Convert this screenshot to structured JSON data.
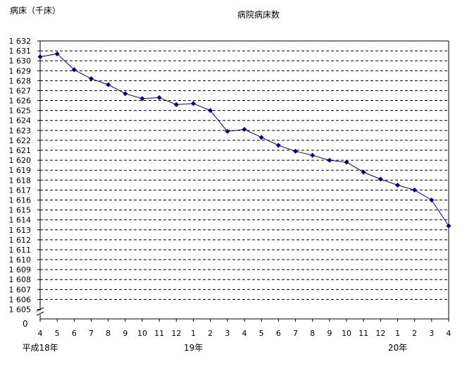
{
  "chart_data": {
    "type": "line",
    "title": "病院病床数",
    "ylabel": "病床（千床）",
    "xlabel": "",
    "y_break_label": "0",
    "ylim": [
      1605,
      1632
    ],
    "y_ticks": [
      "1 605",
      "1 606",
      "1 607",
      "1 608",
      "1 609",
      "1 610",
      "1 611",
      "1 612",
      "1 613",
      "1 614",
      "1 615",
      "1 616",
      "1 617",
      "1 618",
      "1 619",
      "1 620",
      "1 621",
      "1 622",
      "1 623",
      "1 624",
      "1 625",
      "1 626",
      "1 627",
      "1 628",
      "1 629",
      "1 630",
      "1 631",
      "1 632"
    ],
    "categories": [
      "4",
      "5",
      "6",
      "7",
      "8",
      "9",
      "10",
      "11",
      "12",
      "1",
      "2",
      "3",
      "4",
      "5",
      "6",
      "7",
      "8",
      "9",
      "10",
      "11",
      "12",
      "1",
      "2",
      "3",
      "4"
    ],
    "year_labels": [
      {
        "text": "平成18年",
        "at_index": 0
      },
      {
        "text": "19年",
        "at_index": 9
      },
      {
        "text": "20年",
        "at_index": 21
      }
    ],
    "series": [
      {
        "values": [
          1630.4,
          1630.7,
          1629.1,
          1628.2,
          1627.6,
          1626.7,
          1626.2,
          1626.3,
          1625.6,
          1625.7,
          1625.0,
          1622.9,
          1623.1,
          1622.3,
          1621.5,
          1620.9,
          1620.5,
          1620.0,
          1619.8,
          1618.8,
          1618.1,
          1617.5,
          1617.0,
          1616.0,
          1613.4
        ],
        "color": "#000080"
      }
    ],
    "grid": true,
    "legend": "none"
  }
}
